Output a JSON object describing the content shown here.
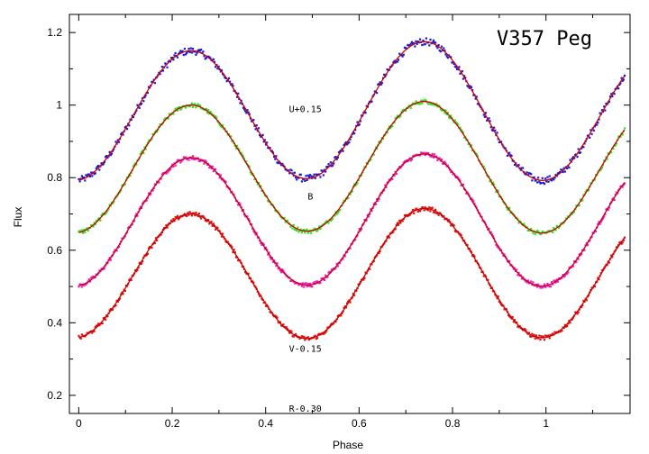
{
  "chart_data": {
    "type": "scatter",
    "title": "V357 Peg",
    "xlabel": "Phase",
    "ylabel": "Flux",
    "xlim": [
      -0.02,
      1.18
    ],
    "ylim": [
      0.15,
      1.25
    ],
    "x_ticks": [
      "0",
      "0.2",
      "0.4",
      "0.6",
      "0.8",
      "1"
    ],
    "x_tick_values": [
      0,
      0.2,
      0.4,
      0.6,
      0.8,
      1.0
    ],
    "y_ticks": [
      "0.2",
      "0.4",
      "0.6",
      "0.8",
      "1",
      "1.2"
    ],
    "y_tick_values": [
      0.2,
      0.4,
      0.6,
      0.8,
      1.0,
      1.2
    ],
    "fit_color": "#cc0000",
    "series": [
      {
        "label": "U+0.15",
        "color": "#1a1ad6",
        "max1": 1.15,
        "max2": 1.175,
        "min1": 0.8,
        "min2": 0.79,
        "label_x": 0.45,
        "label_y": 0.98
      },
      {
        "label": "B",
        "color": "#33dd22",
        "max1": 1.0,
        "max2": 1.01,
        "min1": 0.655,
        "min2": 0.645,
        "label_x": 0.49,
        "label_y": 0.74
      },
      {
        "label": "V-0.15",
        "color": "#e81ac8",
        "max1": 0.855,
        "max2": 0.865,
        "min1": 0.505,
        "min2": 0.5,
        "label_x": 0.45,
        "label_y": 0.32
      },
      {
        "label": "R-0.30",
        "color": "#dd1111",
        "max1": 0.7,
        "max2": 0.715,
        "min1": 0.355,
        "min2": 0.36,
        "label_x": 0.45,
        "label_y": 0.155
      }
    ]
  }
}
